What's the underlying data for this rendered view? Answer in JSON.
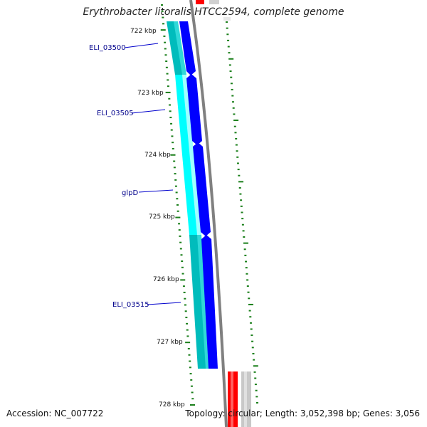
{
  "title": "Erythrobacter litoralis HTCC2594, complete genome",
  "footer": {
    "accession": "Accession: NC_007722",
    "summary": "Topology: circular; Length: 3,052,398 bp; Genes: 3,056"
  },
  "ticks": [
    "722 kbp",
    "723 kbp",
    "724 kbp",
    "725 kbp",
    "726 kbp",
    "727 kbp",
    "728 kbp"
  ],
  "genes": [
    {
      "label": "ELI_03500"
    },
    {
      "label": "ELI_03505"
    },
    {
      "label": "glpD"
    },
    {
      "label": "ELI_03515"
    }
  ],
  "colors": {
    "forward_cds": "#0000ff",
    "cyan_track": "#00ffff",
    "teal_track": "#00c8c8",
    "backbone": "#808080",
    "reverse_feature": "#ff0000",
    "tick_mark": "#1a7f1a",
    "label_text": "#00008b"
  }
}
